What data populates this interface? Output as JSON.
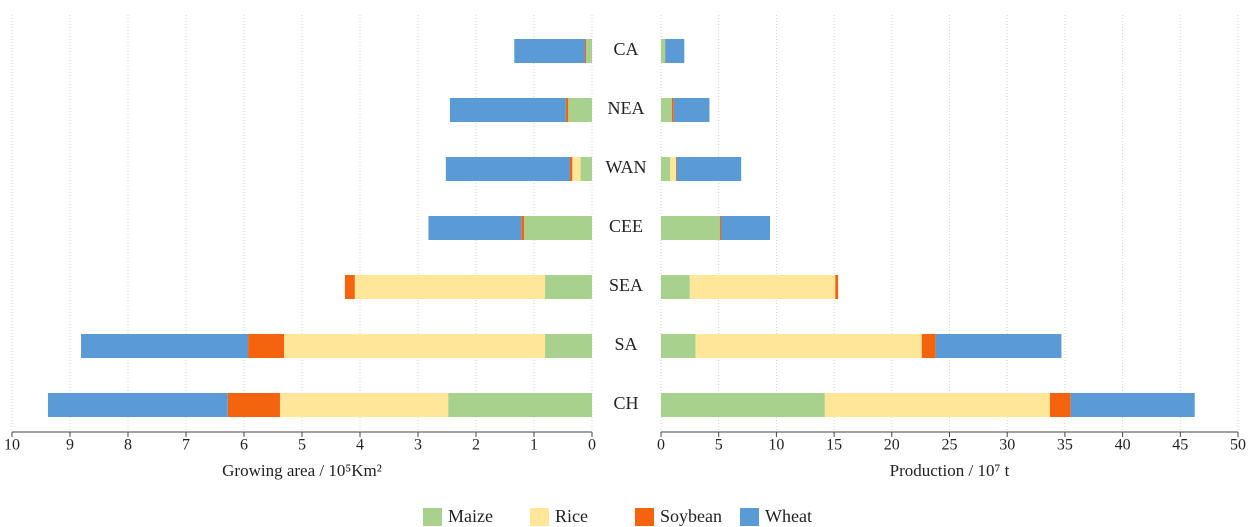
{
  "chart_data": {
    "type": "bar",
    "orientation": "horizontal",
    "stacked": true,
    "grid": true,
    "legend": "bottom",
    "categories": [
      "CA",
      "NEA",
      "WAN",
      "CEE",
      "SEA",
      "SA",
      "CH"
    ],
    "series": [
      {
        "name": "Maize",
        "color": "#a9d18e"
      },
      {
        "name": "Rice",
        "color": "#ffe699"
      },
      {
        "name": "Soybean",
        "color": "#f4640f"
      },
      {
        "name": "Wheat",
        "color": "#5b9bd5"
      }
    ],
    "panels": [
      {
        "xlabel": "Growing area / 10⁵Km²",
        "x_reversed": true,
        "xlim": [
          0,
          10
        ],
        "xticks": [
          0,
          1,
          2,
          3,
          4,
          5,
          6,
          7,
          8,
          9,
          10
        ],
        "values": [
          [
            0.1,
            0.41,
            0.2,
            1.17,
            0.81,
            0.81,
            2.48
          ],
          [
            0,
            0,
            0.14,
            0,
            3.28,
            4.5,
            2.9
          ],
          [
            0.02,
            0.04,
            0.04,
            0.05,
            0.17,
            0.62,
            0.9
          ],
          [
            1.22,
            2.0,
            2.14,
            1.6,
            0,
            2.88,
            3.1
          ]
        ]
      },
      {
        "xlabel": "Production / 10⁷ t",
        "x_reversed": false,
        "xlim": [
          0,
          50
        ],
        "xticks": [
          0,
          5,
          10,
          15,
          20,
          25,
          30,
          35,
          40,
          45,
          50
        ],
        "values": [
          [
            0.35,
            0.95,
            0.8,
            5.1,
            2.5,
            3.0,
            14.2
          ],
          [
            0,
            0,
            0.5,
            0,
            12.6,
            19.6,
            19.5
          ],
          [
            0.02,
            0.15,
            0.05,
            0.1,
            0.25,
            1.2,
            1.8
          ],
          [
            1.65,
            3.1,
            5.6,
            4.25,
            0,
            10.9,
            10.75
          ]
        ]
      }
    ]
  }
}
